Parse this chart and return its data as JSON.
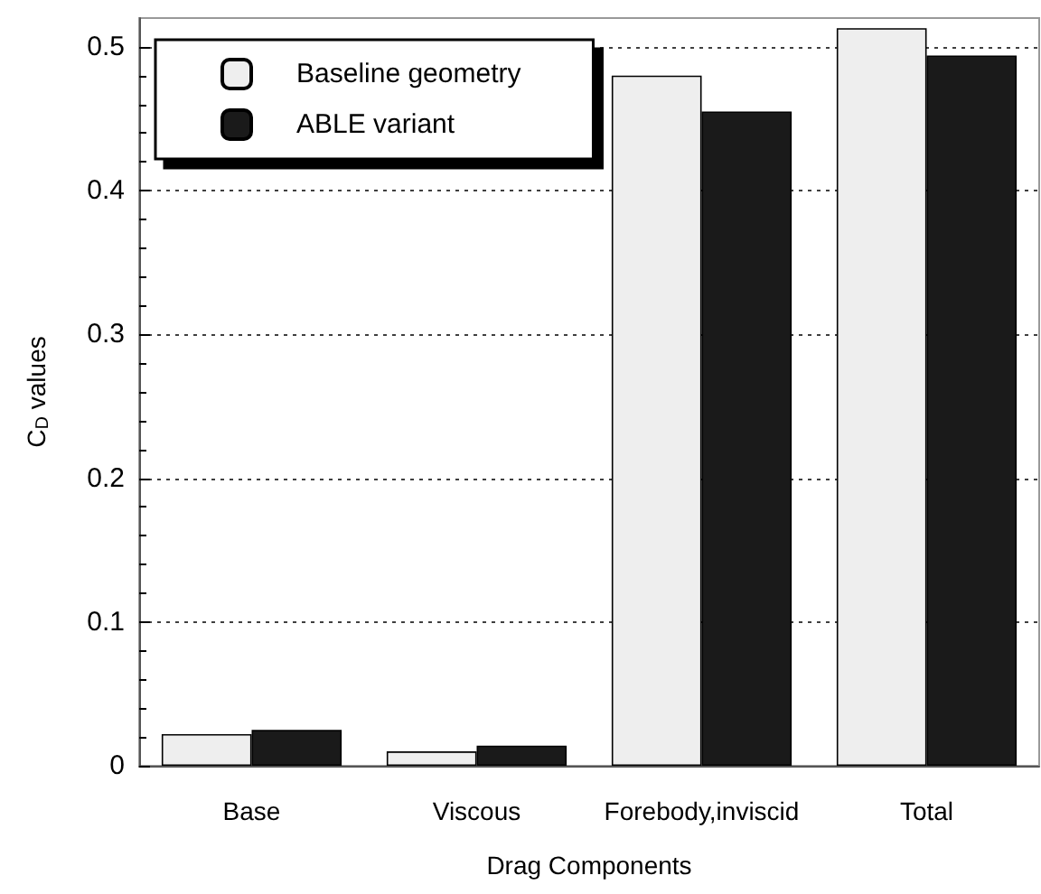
{
  "chart_data": {
    "type": "bar",
    "xlabel": "Drag Components",
    "ylabel": "C$_{D}$ values",
    "categories": [
      "Base",
      "Viscous",
      "Forebody,inviscid",
      "Total"
    ],
    "series": [
      {
        "name": "Baseline geometry",
        "color": "#eeeeee",
        "values": [
          0.022,
          0.01,
          0.48,
          0.513
        ]
      },
      {
        "name": "ABLE variant",
        "color": "#1a1a1a",
        "values": [
          0.025,
          0.014,
          0.455,
          0.494
        ]
      }
    ],
    "ylim": [
      0,
      0.52
    ],
    "yticks": [
      0,
      0.1,
      0.2,
      0.3,
      0.4,
      0.5
    ],
    "grid": "y",
    "legend": "top left"
  }
}
